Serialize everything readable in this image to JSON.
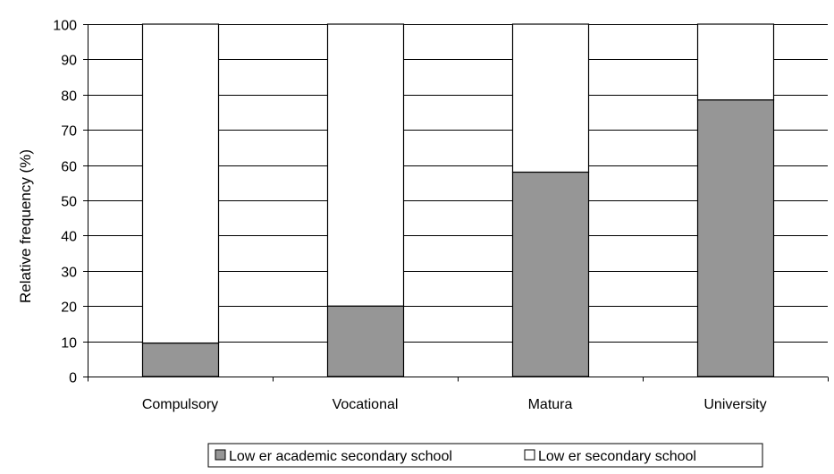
{
  "chart_data": {
    "type": "bar",
    "stacked": true,
    "title": "",
    "xlabel": "",
    "ylabel": "Relative frequency (%)",
    "ylim": [
      0,
      100
    ],
    "yticks": [
      0,
      10,
      20,
      30,
      40,
      50,
      60,
      70,
      80,
      90,
      100
    ],
    "grid": true,
    "legend_position": "bottom",
    "categories": [
      "Compulsory",
      "Vocational",
      "Matura",
      "University"
    ],
    "series": [
      {
        "name": "Low er academic secondary school",
        "values": [
          9.5,
          20,
          58,
          78.5
        ],
        "color": "#969696"
      },
      {
        "name": "Low er secondary school",
        "values": [
          90.5,
          80,
          42,
          21.5
        ],
        "color": "#ffffff"
      }
    ]
  }
}
